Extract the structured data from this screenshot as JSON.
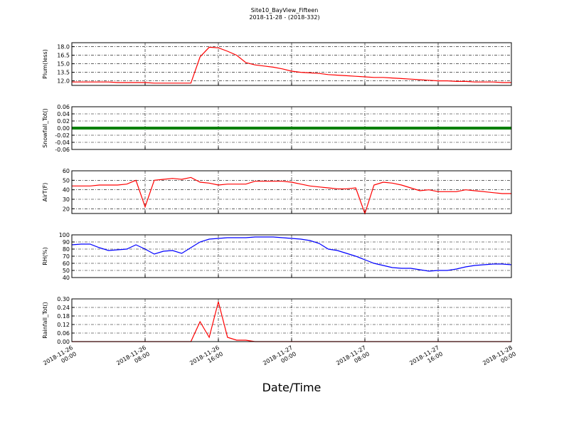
{
  "title": "Site10_BayView_Fifteen",
  "subtitle": "2018-11-28 - (2018-332)",
  "xlabel": "Date/Time",
  "chart_data": [
    {
      "type": "line",
      "ylabel": "Plum(less)",
      "color": "#ff0000",
      "grid": true,
      "xlim": [
        "2018-11-26 00:00",
        "2018-11-28 00:00"
      ],
      "ylim": [
        11.2,
        18.7
      ],
      "yticks": [
        {
          "value": 12,
          "label": "12.0"
        },
        13.5,
        {
          "value": 15,
          "label": "15.0"
        },
        16.5,
        {
          "value": 18,
          "label": "18.0"
        }
      ],
      "x": [
        "2018-11-26 00:00",
        "2018-11-26 01:00",
        "2018-11-26 02:00",
        "2018-11-26 03:00",
        "2018-11-26 04:00",
        "2018-11-26 05:00",
        "2018-11-26 06:00",
        "2018-11-26 07:00",
        "2018-11-26 08:00",
        "2018-11-26 09:00",
        "2018-11-26 10:00",
        "2018-11-26 11:00",
        "2018-11-26 12:00",
        "2018-11-26 13:00",
        "2018-11-26 14:00",
        "2018-11-26 15:00",
        "2018-11-26 16:00",
        "2018-11-26 17:00",
        "2018-11-26 18:00",
        "2018-11-26 19:00",
        "2018-11-26 20:00",
        "2018-11-26 21:00",
        "2018-11-26 22:00",
        "2018-11-26 23:00",
        "2018-11-27 00:00",
        "2018-11-27 01:00",
        "2018-11-27 02:00",
        "2018-11-27 03:00",
        "2018-11-27 04:00",
        "2018-11-27 05:00",
        "2018-11-27 06:00",
        "2018-11-27 07:00",
        "2018-11-27 08:00",
        "2018-11-27 09:00",
        "2018-11-27 10:00",
        "2018-11-27 11:00",
        "2018-11-27 12:00",
        "2018-11-27 13:00",
        "2018-11-27 14:00",
        "2018-11-27 15:00",
        "2018-11-27 16:00",
        "2018-11-27 17:00",
        "2018-11-27 18:00",
        "2018-11-27 19:00",
        "2018-11-27 20:00",
        "2018-11-27 21:00",
        "2018-11-27 22:00",
        "2018-11-27 23:00",
        "2018-11-28 00:00"
      ],
      "values": [
        11.8,
        11.8,
        11.8,
        11.8,
        11.8,
        11.7,
        11.7,
        11.7,
        11.7,
        11.6,
        11.6,
        11.6,
        11.6,
        11.6,
        16.2,
        17.9,
        17.8,
        17.2,
        16.5,
        15.2,
        14.8,
        14.6,
        14.4,
        14.1,
        13.7,
        13.5,
        13.4,
        13.3,
        13.1,
        13.0,
        12.9,
        12.8,
        12.7,
        12.6,
        12.6,
        12.5,
        12.4,
        12.3,
        12.2,
        12.1,
        12.0,
        12.0,
        11.9,
        11.9,
        11.8,
        11.8,
        11.8,
        11.7,
        11.7
      ]
    },
    {
      "type": "line",
      "ylabel": "Snowfall_Tot()",
      "color": "#008000",
      "grid": true,
      "xlim": [
        "2018-11-26 00:00",
        "2018-11-28 00:00"
      ],
      "ylim": [
        -0.06,
        0.06
      ],
      "yticks": [
        -0.06,
        -0.04,
        -0.02,
        {
          "value": 0,
          "label": "0.00"
        },
        0.02,
        0.04,
        0.06
      ],
      "x": [
        "2018-11-26 00:00",
        "2018-11-26 01:00",
        "2018-11-26 02:00",
        "2018-11-26 03:00",
        "2018-11-26 04:00",
        "2018-11-26 05:00",
        "2018-11-26 06:00",
        "2018-11-26 07:00",
        "2018-11-26 08:00",
        "2018-11-26 09:00",
        "2018-11-26 10:00",
        "2018-11-26 11:00",
        "2018-11-26 12:00",
        "2018-11-26 13:00",
        "2018-11-26 14:00",
        "2018-11-26 15:00",
        "2018-11-26 16:00",
        "2018-11-26 17:00",
        "2018-11-26 18:00",
        "2018-11-26 19:00",
        "2018-11-26 20:00",
        "2018-11-26 21:00",
        "2018-11-26 22:00",
        "2018-11-26 23:00",
        "2018-11-27 00:00",
        "2018-11-27 01:00",
        "2018-11-27 02:00",
        "2018-11-27 03:00",
        "2018-11-27 04:00",
        "2018-11-27 05:00",
        "2018-11-27 06:00",
        "2018-11-27 07:00",
        "2018-11-27 08:00",
        "2018-11-27 09:00",
        "2018-11-27 10:00",
        "2018-11-27 11:00",
        "2018-11-27 12:00",
        "2018-11-27 13:00",
        "2018-11-27 14:00",
        "2018-11-27 15:00",
        "2018-11-27 16:00",
        "2018-11-27 17:00",
        "2018-11-27 18:00",
        "2018-11-27 19:00",
        "2018-11-27 20:00",
        "2018-11-27 21:00",
        "2018-11-27 22:00",
        "2018-11-27 23:00",
        "2018-11-28 00:00"
      ],
      "values": [
        0,
        0,
        0,
        0,
        0,
        0,
        0,
        0,
        0,
        0,
        0,
        0,
        0,
        0,
        0,
        0,
        0,
        0,
        0,
        0,
        0,
        0,
        0,
        0,
        0,
        0,
        0,
        0,
        0,
        0,
        0,
        0,
        0,
        0,
        0,
        0,
        0,
        0,
        0,
        0,
        0,
        0,
        0,
        0,
        0,
        0,
        0,
        0,
        0
      ]
    },
    {
      "type": "line",
      "ylabel": "AirT(F)",
      "color": "#ff0000",
      "grid": true,
      "xlim": [
        "2018-11-26 00:00",
        "2018-11-28 00:00"
      ],
      "ylim": [
        15,
        60
      ],
      "yticks": [
        20,
        30,
        40,
        50,
        60
      ],
      "x": [
        "2018-11-26 00:00",
        "2018-11-26 01:00",
        "2018-11-26 02:00",
        "2018-11-26 03:00",
        "2018-11-26 04:00",
        "2018-11-26 05:00",
        "2018-11-26 06:00",
        "2018-11-26 07:00",
        "2018-11-26 08:00",
        "2018-11-26 09:00",
        "2018-11-26 10:00",
        "2018-11-26 11:00",
        "2018-11-26 12:00",
        "2018-11-26 13:00",
        "2018-11-26 14:00",
        "2018-11-26 15:00",
        "2018-11-26 16:00",
        "2018-11-26 17:00",
        "2018-11-26 18:00",
        "2018-11-26 19:00",
        "2018-11-26 20:00",
        "2018-11-26 21:00",
        "2018-11-26 22:00",
        "2018-11-26 23:00",
        "2018-11-27 00:00",
        "2018-11-27 01:00",
        "2018-11-27 02:00",
        "2018-11-27 03:00",
        "2018-11-27 04:00",
        "2018-11-27 05:00",
        "2018-11-27 06:00",
        "2018-11-27 07:00",
        "2018-11-27 08:00",
        "2018-11-27 09:00",
        "2018-11-27 10:00",
        "2018-11-27 11:00",
        "2018-11-27 12:00",
        "2018-11-27 13:00",
        "2018-11-27 14:00",
        "2018-11-27 15:00",
        "2018-11-27 16:00",
        "2018-11-27 17:00",
        "2018-11-27 18:00",
        "2018-11-27 19:00",
        "2018-11-27 20:00",
        "2018-11-27 21:00",
        "2018-11-27 22:00",
        "2018-11-27 23:00",
        "2018-11-28 00:00"
      ],
      "values": [
        44,
        44,
        44,
        45,
        45,
        45,
        46,
        50,
        22,
        50,
        51,
        52,
        51,
        53,
        48,
        47,
        45,
        46,
        46,
        46,
        49,
        49,
        49,
        49,
        48,
        46,
        44,
        43,
        42,
        41,
        41,
        42,
        15,
        45,
        48,
        47,
        45,
        42,
        39,
        40,
        38,
        38,
        38,
        40,
        39,
        38,
        37,
        36,
        36
      ]
    },
    {
      "type": "line",
      "ylabel": "RH(%)",
      "color": "#0000ff",
      "grid": true,
      "xlim": [
        "2018-11-26 00:00",
        "2018-11-28 00:00"
      ],
      "ylim": [
        40,
        100
      ],
      "yticks": [
        40,
        50,
        60,
        70,
        80,
        90,
        100
      ],
      "x": [
        "2018-11-26 00:00",
        "2018-11-26 01:00",
        "2018-11-26 02:00",
        "2018-11-26 03:00",
        "2018-11-26 04:00",
        "2018-11-26 05:00",
        "2018-11-26 06:00",
        "2018-11-26 07:00",
        "2018-11-26 08:00",
        "2018-11-26 09:00",
        "2018-11-26 10:00",
        "2018-11-26 11:00",
        "2018-11-26 12:00",
        "2018-11-26 13:00",
        "2018-11-26 14:00",
        "2018-11-26 15:00",
        "2018-11-26 16:00",
        "2018-11-26 17:00",
        "2018-11-26 18:00",
        "2018-11-26 19:00",
        "2018-11-26 20:00",
        "2018-11-26 21:00",
        "2018-11-26 22:00",
        "2018-11-26 23:00",
        "2018-11-27 00:00",
        "2018-11-27 01:00",
        "2018-11-27 02:00",
        "2018-11-27 03:00",
        "2018-11-27 04:00",
        "2018-11-27 05:00",
        "2018-11-27 06:00",
        "2018-11-27 07:00",
        "2018-11-27 08:00",
        "2018-11-27 09:00",
        "2018-11-27 10:00",
        "2018-11-27 11:00",
        "2018-11-27 12:00",
        "2018-11-27 13:00",
        "2018-11-27 14:00",
        "2018-11-27 15:00",
        "2018-11-27 16:00",
        "2018-11-27 17:00",
        "2018-11-27 18:00",
        "2018-11-27 19:00",
        "2018-11-27 20:00",
        "2018-11-27 21:00",
        "2018-11-27 22:00",
        "2018-11-27 23:00",
        "2018-11-28 00:00"
      ],
      "values": [
        86,
        87,
        87,
        82,
        78,
        79,
        80,
        86,
        80,
        73,
        77,
        78,
        74,
        82,
        90,
        94,
        95,
        96,
        96,
        96,
        97,
        97,
        97,
        96,
        95,
        94,
        92,
        88,
        80,
        78,
        74,
        70,
        65,
        60,
        57,
        54,
        53,
        53,
        51,
        49,
        50,
        50,
        52,
        55,
        57,
        58,
        59,
        59,
        58
      ]
    },
    {
      "type": "line",
      "ylabel": "Rainfall_Tot()",
      "color": "#ff0000",
      "grid": true,
      "xlim": [
        "2018-11-26 00:00",
        "2018-11-28 00:00"
      ],
      "ylim": [
        0,
        0.3
      ],
      "yticks": [
        {
          "value": 0,
          "label": "0.00"
        },
        0.06,
        0.12,
        0.18,
        0.24,
        {
          "value": 0.3,
          "label": "0.30"
        }
      ],
      "xticks": [
        "2018-11-26 00:00",
        "2018-11-26 08:00",
        "2018-11-26 16:00",
        "2018-11-27 00:00",
        "2018-11-27 08:00",
        "2018-11-27 16:00",
        "2018-11-28 00:00"
      ],
      "x": [
        "2018-11-26 00:00",
        "2018-11-26 01:00",
        "2018-11-26 02:00",
        "2018-11-26 03:00",
        "2018-11-26 04:00",
        "2018-11-26 05:00",
        "2018-11-26 06:00",
        "2018-11-26 07:00",
        "2018-11-26 08:00",
        "2018-11-26 09:00",
        "2018-11-26 10:00",
        "2018-11-26 11:00",
        "2018-11-26 12:00",
        "2018-11-26 13:00",
        "2018-11-26 14:00",
        "2018-11-26 15:00",
        "2018-11-26 16:00",
        "2018-11-26 17:00",
        "2018-11-26 18:00",
        "2018-11-26 19:00",
        "2018-11-26 20:00",
        "2018-11-26 21:00",
        "2018-11-26 22:00",
        "2018-11-26 23:00",
        "2018-11-27 00:00",
        "2018-11-27 01:00",
        "2018-11-27 02:00",
        "2018-11-27 03:00",
        "2018-11-27 04:00",
        "2018-11-27 05:00",
        "2018-11-27 06:00",
        "2018-11-27 07:00",
        "2018-11-27 08:00",
        "2018-11-27 09:00",
        "2018-11-27 10:00",
        "2018-11-27 11:00",
        "2018-11-27 12:00",
        "2018-11-27 13:00",
        "2018-11-27 14:00",
        "2018-11-27 15:00",
        "2018-11-27 16:00",
        "2018-11-27 17:00",
        "2018-11-27 18:00",
        "2018-11-27 19:00",
        "2018-11-27 20:00",
        "2018-11-27 21:00",
        "2018-11-27 22:00",
        "2018-11-27 23:00",
        "2018-11-28 00:00"
      ],
      "values": [
        0,
        0,
        0,
        0,
        0,
        0,
        0,
        0,
        0,
        0,
        0,
        0,
        0,
        0,
        0.14,
        0.03,
        0.28,
        0.03,
        0.01,
        0.01,
        0,
        0,
        0,
        0,
        0,
        0,
        0,
        0,
        0,
        0,
        0,
        0,
        0,
        0,
        0,
        0,
        0,
        0,
        0,
        0,
        0,
        0,
        0,
        0,
        0,
        0,
        0,
        0,
        0
      ]
    }
  ]
}
